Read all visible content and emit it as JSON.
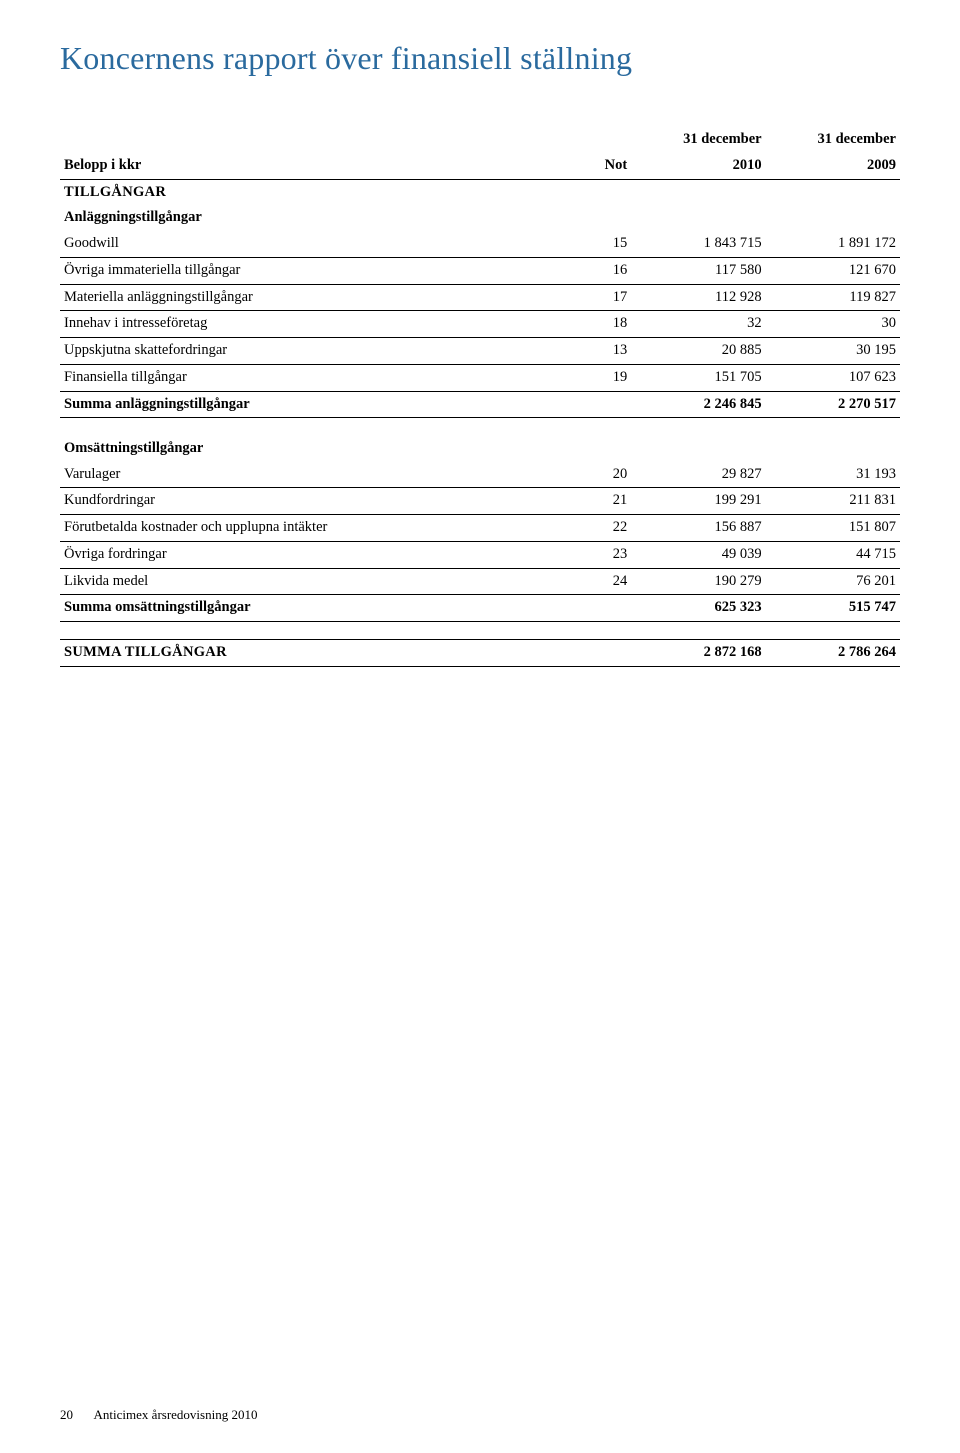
{
  "page": {
    "title": "Koncernens rapport över finansiell ställning",
    "footer_page": "20",
    "footer_text": "Anticimex årsredovisning 2010"
  },
  "table": {
    "header": {
      "belopp": "Belopp i kkr",
      "not": "Not",
      "col1_top": "31 december",
      "col1_bot": "2010",
      "col2_top": "31 december",
      "col2_bot": "2009"
    },
    "s1_title": "TILLGÅNGAR",
    "s1_sub": "Anläggningstillgångar",
    "s1_rows": [
      {
        "label": "Goodwill",
        "not": "15",
        "v1": "1 843 715",
        "v2": "1 891 172"
      },
      {
        "label": "Övriga immateriella tillgångar",
        "not": "16",
        "v1": "117 580",
        "v2": "121 670"
      },
      {
        "label": "Materiella anläggningstillgångar",
        "not": "17",
        "v1": "112 928",
        "v2": "119 827"
      },
      {
        "label": "Innehav i intresseföretag",
        "not": "18",
        "v1": "32",
        "v2": "30"
      },
      {
        "label": "Uppskjutna skattefordringar",
        "not": "13",
        "v1": "20 885",
        "v2": "30 195"
      },
      {
        "label": "Finansiella tillgångar",
        "not": "19",
        "v1": "151 705",
        "v2": "107 623"
      }
    ],
    "s1_sum": {
      "label": "Summa anläggningstillgångar",
      "v1": "2 246 845",
      "v2": "2 270 517"
    },
    "s2_sub": "Omsättningstillgångar",
    "s2_rows": [
      {
        "label": "Varulager",
        "not": "20",
        "v1": "29 827",
        "v2": "31 193"
      },
      {
        "label": "Kundfordringar",
        "not": "21",
        "v1": "199 291",
        "v2": "211 831"
      },
      {
        "label": "Förutbetalda kostnader och upplupna intäkter",
        "not": "22",
        "v1": "156 887",
        "v2": "151 807"
      },
      {
        "label": "Övriga fordringar",
        "not": "23",
        "v1": "49 039",
        "v2": "44 715"
      },
      {
        "label": "Likvida medel",
        "not": "24",
        "v1": "190 279",
        "v2": "76 201"
      }
    ],
    "s2_sum": {
      "label": "Summa omsättningstillgångar",
      "v1": "625 323",
      "v2": "515 747"
    },
    "grand": {
      "label": "SUMMA TILLGÅNGAR",
      "v1": "2 872 168",
      "v2": "2 786 264"
    }
  }
}
